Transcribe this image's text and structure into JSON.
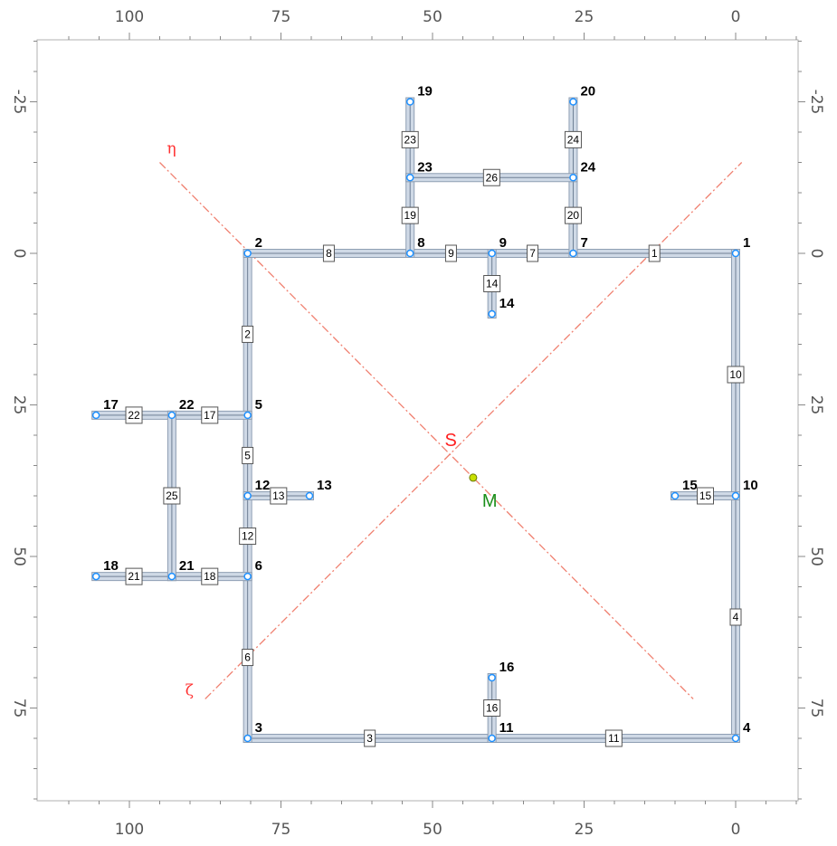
{
  "colors": {
    "member_fill": "#cfd9e6",
    "member_edge": "#8f9fb3",
    "node_fill": "#1e90ff",
    "principal_axes": "#f08070",
    "shear_center": "#ff2020",
    "centroid_marker": "#c8e000",
    "centroid_label": "#1a8f1a",
    "frame": "#888888"
  },
  "axes": {
    "x_tick_labels": [
      "100",
      "75",
      "50",
      "25",
      "0"
    ],
    "y_tick_labels": [
      "-25",
      "0",
      "25",
      "50",
      "75"
    ],
    "x_ticks": [
      100,
      75,
      50,
      25,
      0
    ],
    "y_ticks": [
      -25,
      0,
      25,
      50,
      75
    ],
    "x_range": [
      110,
      -10
    ],
    "y_range": [
      -35,
      91
    ]
  },
  "nodes": [
    {
      "id": "1",
      "x": 0,
      "y": 0
    },
    {
      "id": "2",
      "x": 80.5,
      "y": 0
    },
    {
      "id": "3",
      "x": 80.5,
      "y": 80
    },
    {
      "id": "4",
      "x": 0,
      "y": 80
    },
    {
      "id": "5",
      "x": 80.5,
      "y": 26.7
    },
    {
      "id": "6",
      "x": 80.5,
      "y": 53.3
    },
    {
      "id": "7",
      "x": 26.8,
      "y": 0
    },
    {
      "id": "8",
      "x": 53.7,
      "y": 0
    },
    {
      "id": "9",
      "x": 40.2,
      "y": 0
    },
    {
      "id": "10",
      "x": 0,
      "y": 40
    },
    {
      "id": "11",
      "x": 40.2,
      "y": 80
    },
    {
      "id": "12",
      "x": 80.5,
      "y": 40
    },
    {
      "id": "13",
      "x": 70.3,
      "y": 40
    },
    {
      "id": "14",
      "x": 40.2,
      "y": 10
    },
    {
      "id": "15",
      "x": 10,
      "y": 40
    },
    {
      "id": "16",
      "x": 40.2,
      "y": 70
    },
    {
      "id": "17",
      "x": 105.5,
      "y": 26.7
    },
    {
      "id": "18",
      "x": 105.5,
      "y": 53.3
    },
    {
      "id": "19",
      "x": 53.7,
      "y": -25
    },
    {
      "id": "20",
      "x": 26.8,
      "y": -25
    },
    {
      "id": "21",
      "x": 93,
      "y": 53.3
    },
    {
      "id": "22",
      "x": 93,
      "y": 26.7
    },
    {
      "id": "23",
      "x": 53.7,
      "y": -12.5
    },
    {
      "id": "24",
      "x": 26.8,
      "y": -12.5
    }
  ],
  "elements": [
    {
      "id": "1",
      "from": "7",
      "to": "1"
    },
    {
      "id": "2",
      "from": "2",
      "to": "5"
    },
    {
      "id": "3",
      "from": "3",
      "to": "11"
    },
    {
      "id": "4",
      "from": "10",
      "to": "4"
    },
    {
      "id": "5",
      "from": "5",
      "to": "12"
    },
    {
      "id": "6",
      "from": "6",
      "to": "3"
    },
    {
      "id": "7",
      "from": "9",
      "to": "7"
    },
    {
      "id": "8",
      "from": "2",
      "to": "8"
    },
    {
      "id": "9",
      "from": "8",
      "to": "9"
    },
    {
      "id": "10",
      "from": "1",
      "to": "10"
    },
    {
      "id": "11",
      "from": "11",
      "to": "4"
    },
    {
      "id": "12",
      "from": "12",
      "to": "6"
    },
    {
      "id": "13",
      "from": "12",
      "to": "13"
    },
    {
      "id": "14",
      "from": "9",
      "to": "14"
    },
    {
      "id": "15",
      "from": "15",
      "to": "10"
    },
    {
      "id": "16",
      "from": "16",
      "to": "11"
    },
    {
      "id": "17",
      "from": "22",
      "to": "5"
    },
    {
      "id": "18",
      "from": "21",
      "to": "6"
    },
    {
      "id": "19",
      "from": "23",
      "to": "8"
    },
    {
      "id": "20",
      "from": "24",
      "to": "7"
    },
    {
      "id": "21",
      "from": "18",
      "to": "21"
    },
    {
      "id": "22",
      "from": "17",
      "to": "22"
    },
    {
      "id": "23",
      "from": "19",
      "to": "23"
    },
    {
      "id": "24",
      "from": "20",
      "to": "24"
    },
    {
      "id": "25",
      "from": "22",
      "to": "21"
    },
    {
      "id": "26",
      "from": "23",
      "to": "24"
    }
  ],
  "principal_axes": {
    "eta_label": "η",
    "zeta_label": "ζ",
    "eta_line": [
      [
        95,
        -15
      ],
      [
        7,
        73.5
      ]
    ],
    "zeta_line": [
      [
        87.5,
        73.5
      ],
      [
        -1,
        -15
      ]
    ]
  },
  "points": {
    "shear_center": {
      "label": "S",
      "x": 46.8,
      "y": 33
    },
    "centroid": {
      "label": "M",
      "x": 43.3,
      "y": 37
    }
  }
}
